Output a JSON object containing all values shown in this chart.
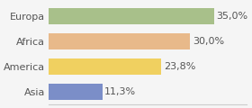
{
  "categories": [
    "Europa",
    "Africa",
    "America",
    "Asia"
  ],
  "values": [
    35.0,
    30.0,
    23.8,
    11.3
  ],
  "labels": [
    "35,0%",
    "30,0%",
    "23,8%",
    "11,3%"
  ],
  "bar_colors": [
    "#a8c08a",
    "#e8b98a",
    "#f0d060",
    "#7b8ec8"
  ],
  "background_color": "#f5f5f5",
  "xlim": [
    0,
    42
  ],
  "bar_height": 0.62,
  "label_fontsize": 8.0,
  "tick_fontsize": 8.0
}
